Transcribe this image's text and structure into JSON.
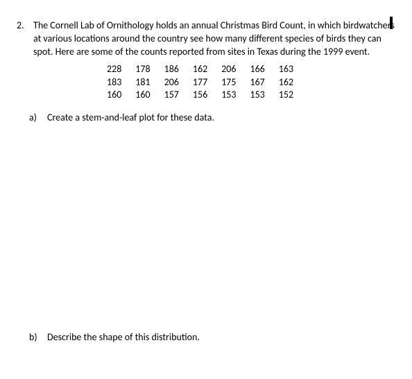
{
  "problem": {
    "number": "2.",
    "text": "The Cornell Lab of Ornithology holds an annual Christmas Bird Count, in which birdwatchers at various locations around the country see how many different species of birds they can spot.  Here are some of the counts reported from sites in Texas during the 1999 event."
  },
  "data_rows": [
    [
      "228",
      "178",
      "186",
      "162",
      "206",
      "166",
      "163"
    ],
    [
      "183",
      "181",
      "206",
      "177",
      "175",
      "167",
      "162"
    ],
    [
      "160",
      "160",
      "157",
      "156",
      "153",
      "153",
      "152"
    ]
  ],
  "part_a": {
    "label": "a)",
    "text": "Create a stem-and-leaf plot for these data."
  },
  "part_b": {
    "label": "b)",
    "text": "Describe the shape of this distribution."
  }
}
